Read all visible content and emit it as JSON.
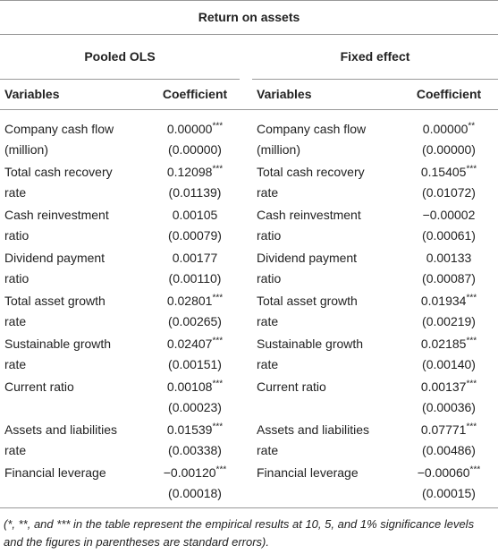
{
  "title": "Return on assets",
  "groups": [
    "Pooled OLS",
    "Fixed effect"
  ],
  "columns": [
    "Variables",
    "Coefficient",
    "Variables",
    "Coefficient"
  ],
  "rows": [
    {
      "variable": [
        "Company cash flow",
        "(million)"
      ],
      "left": {
        "coef": "0.00000",
        "stars": "***",
        "se": "(0.00000)"
      },
      "right": {
        "coef": "0.00000",
        "stars": "**",
        "se": "(0.00000)"
      }
    },
    {
      "variable": [
        "Total cash recovery",
        "rate"
      ],
      "left": {
        "coef": "0.12098",
        "stars": "***",
        "se": "(0.01139)"
      },
      "right": {
        "coef": "0.15405",
        "stars": "***",
        "se": "(0.01072)"
      }
    },
    {
      "variable": [
        "Cash reinvestment",
        "ratio"
      ],
      "left": {
        "coef": "0.00105",
        "stars": "",
        "se": "(0.00079)"
      },
      "right": {
        "coef": "−0.00002",
        "stars": "",
        "se": "(0.00061)"
      }
    },
    {
      "variable": [
        "Dividend payment",
        "ratio"
      ],
      "left": {
        "coef": "0.00177",
        "stars": "",
        "se": "(0.00110)"
      },
      "right": {
        "coef": "0.00133",
        "stars": "",
        "se": "(0.00087)"
      }
    },
    {
      "variable": [
        "Total asset growth",
        "rate"
      ],
      "left": {
        "coef": "0.02801",
        "stars": "***",
        "se": "(0.00265)"
      },
      "right": {
        "coef": "0.01934",
        "stars": "***",
        "se": "(0.00219)"
      }
    },
    {
      "variable": [
        "Sustainable growth",
        "rate"
      ],
      "left": {
        "coef": "0.02407",
        "stars": "***",
        "se": "(0.00151)"
      },
      "right": {
        "coef": "0.02185",
        "stars": "***",
        "se": "(0.00140)"
      }
    },
    {
      "variable": [
        "Current ratio"
      ],
      "left": {
        "coef": "0.00108",
        "stars": "***",
        "se": "(0.00023)"
      },
      "right": {
        "coef": "0.00137",
        "stars": "***",
        "se": "(0.00036)"
      }
    },
    {
      "variable": [
        "Assets and liabilities",
        "rate"
      ],
      "left": {
        "coef": "0.01539",
        "stars": "***",
        "se": "(0.00338)"
      },
      "right": {
        "coef": "0.07771",
        "stars": "***",
        "se": "(0.00486)"
      }
    },
    {
      "variable": [
        "Financial leverage"
      ],
      "left": {
        "coef": "−0.00120",
        "stars": "***",
        "se": "(0.00018)"
      },
      "right": {
        "coef": "−0.00060",
        "stars": "***",
        "se": "(0.00015)"
      }
    }
  ],
  "footnote": "(*, **, and *** in the table represent the empirical results at 10, 5, and 1% significance levels and the figures in parentheses are standard errors)."
}
